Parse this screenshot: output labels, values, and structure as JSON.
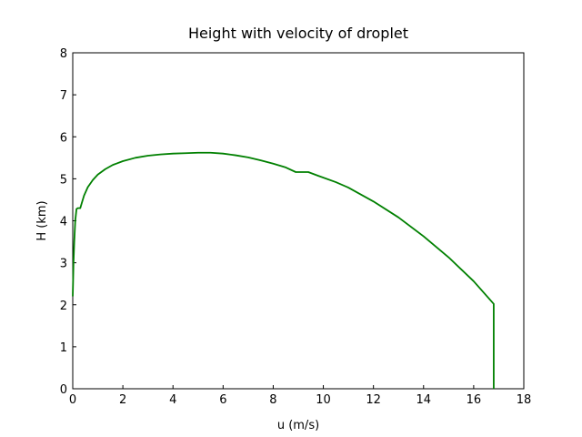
{
  "chart_data": {
    "type": "line",
    "title": "Height with velocity of droplet",
    "xlabel": "u (m/s)",
    "ylabel": "H (km)",
    "xlim": [
      0,
      18
    ],
    "ylim": [
      0,
      8
    ],
    "xticks": [
      "0",
      "2",
      "4",
      "6",
      "8",
      "10",
      "12",
      "14",
      "16",
      "18"
    ],
    "yticks": [
      "0",
      "1",
      "2",
      "3",
      "4",
      "5",
      "6",
      "7",
      "8"
    ],
    "grid": false,
    "series": [
      {
        "color": "#008000",
        "x": [
          0.0,
          0.03,
          0.06,
          0.1,
          0.15,
          0.2,
          0.25,
          0.3,
          0.35,
          0.45,
          0.6,
          0.8,
          1.0,
          1.3,
          1.6,
          2.0,
          2.5,
          3.0,
          3.5,
          4.0,
          4.5,
          5.0,
          5.5,
          6.0,
          6.5,
          7.0,
          7.5,
          8.0,
          8.5,
          8.9,
          9.4,
          9.8,
          10.5,
          11.0,
          12.0,
          13.0,
          14.0,
          15.0,
          16.0,
          16.8,
          16.8
        ],
        "y": [
          2.2,
          3.0,
          3.5,
          4.0,
          4.28,
          4.3,
          4.3,
          4.3,
          4.4,
          4.6,
          4.8,
          4.97,
          5.1,
          5.23,
          5.33,
          5.42,
          5.5,
          5.55,
          5.58,
          5.6,
          5.61,
          5.62,
          5.62,
          5.6,
          5.56,
          5.51,
          5.44,
          5.36,
          5.27,
          5.16,
          5.16,
          5.07,
          4.92,
          4.79,
          4.46,
          4.08,
          3.63,
          3.13,
          2.56,
          2.02,
          0.0
        ]
      }
    ]
  }
}
